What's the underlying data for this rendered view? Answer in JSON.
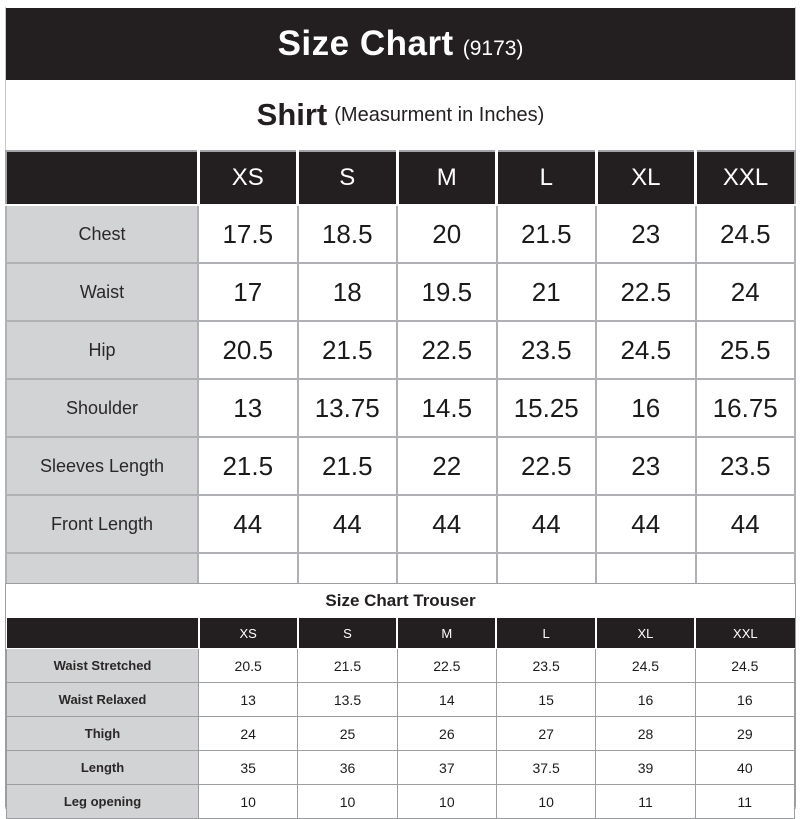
{
  "banner": {
    "title": "Size Chart",
    "code": "(9173)"
  },
  "shirt_header": {
    "title": "Shirt",
    "subtitle": "(Measurment in Inches)"
  },
  "trouser_header": {
    "title": "Size Chart Trouser"
  },
  "colors": {
    "header_bg": "#231f20",
    "label_bg": "#d1d3d4",
    "grid_line": "#a6a8ab"
  },
  "chart_data": [
    {
      "type": "table",
      "title": "Shirt (Measurment in Inches)",
      "columns": [
        "",
        "XS",
        "S",
        "M",
        "L",
        "XL",
        "XXL"
      ],
      "rows": [
        [
          "Chest",
          "17.5",
          "18.5",
          "20",
          "21.5",
          "23",
          "24.5"
        ],
        [
          "Waist",
          "17",
          "18",
          "19.5",
          "21",
          "22.5",
          "24"
        ],
        [
          "Hip",
          "20.5",
          "21.5",
          "22.5",
          "23.5",
          "24.5",
          "25.5"
        ],
        [
          "Shoulder",
          "13",
          "13.75",
          "14.5",
          "15.25",
          "16",
          "16.75"
        ],
        [
          "Sleeves Length",
          "21.5",
          "21.5",
          "22",
          "22.5",
          "23",
          "23.5"
        ],
        [
          "Front Length",
          "44",
          "44",
          "44",
          "44",
          "44",
          "44"
        ],
        [
          "",
          "",
          "",
          "",
          "",
          "",
          ""
        ]
      ]
    },
    {
      "type": "table",
      "title": "Size Chart Trouser",
      "columns": [
        "",
        "XS",
        "S",
        "M",
        "L",
        "XL",
        "XXL"
      ],
      "rows": [
        [
          "Waist Stretched",
          "20.5",
          "21.5",
          "22.5",
          "23.5",
          "24.5",
          "24.5"
        ],
        [
          "Waist Relaxed",
          "13",
          "13.5",
          "14",
          "15",
          "16",
          "16"
        ],
        [
          "Thigh",
          "24",
          "25",
          "26",
          "27",
          "28",
          "29"
        ],
        [
          "Length",
          "35",
          "36",
          "37",
          "37.5",
          "39",
          "40"
        ],
        [
          "Leg opening",
          "10",
          "10",
          "10",
          "10",
          "11",
          "11"
        ]
      ]
    }
  ]
}
